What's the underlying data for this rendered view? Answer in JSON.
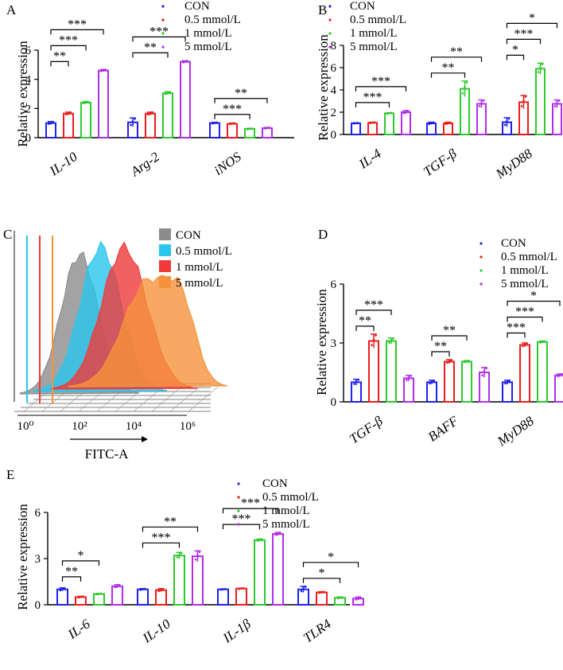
{
  "colors": {
    "CON": "#1f1ff0",
    "0.5 mmol/L": "#ee1c1c",
    "1 mmol/L": "#2ec92e",
    "5 mmol/L": "#b02ee8",
    "flow": [
      "#8c8c8c",
      "#29c6ee",
      "#ef3a3a",
      "#f5923b"
    ]
  },
  "chart_data": [
    {
      "panel": "A",
      "type": "bar",
      "ylabel": "Relative expression",
      "ylim": [
        0,
        6
      ],
      "yticks": [
        "0",
        "2",
        "4",
        "6"
      ],
      "categories": [
        "IL-10",
        "Arg-2",
        "iNOS"
      ],
      "legend": [
        "CON",
        "0.5 mmol/L",
        "1 mmol/L",
        "5 mmol/L"
      ],
      "series": [
        {
          "name": "CON",
          "values": [
            1.0,
            1.05,
            1.0
          ],
          "errors": [
            0.1,
            0.3,
            0.05
          ]
        },
        {
          "name": "0.5 mmol/L",
          "values": [
            1.65,
            1.65,
            0.95
          ],
          "errors": [
            0.1,
            0.1,
            0.05
          ]
        },
        {
          "name": "1 mmol/L",
          "values": [
            2.4,
            3.05,
            0.6
          ],
          "errors": [
            0.07,
            0.1,
            0.04
          ]
        },
        {
          "name": "5 mmol/L",
          "values": [
            4.6,
            5.2,
            0.65
          ],
          "errors": [
            0.07,
            0.07,
            0.05
          ]
        }
      ],
      "significance": [
        {
          "cat": 0,
          "from": 0,
          "to": 1,
          "label": "**"
        },
        {
          "cat": 0,
          "from": 0,
          "to": 2,
          "label": "***"
        },
        {
          "cat": 0,
          "from": 0,
          "to": 3,
          "label": "***"
        },
        {
          "cat": 1,
          "from": 0,
          "to": 2,
          "label": "**"
        },
        {
          "cat": 1,
          "from": 0,
          "to": 3,
          "label": "***"
        },
        {
          "cat": 2,
          "from": 0,
          "to": 2,
          "label": "***"
        },
        {
          "cat": 2,
          "from": 0,
          "to": 3,
          "label": "**"
        }
      ]
    },
    {
      "panel": "B",
      "type": "bar",
      "ylabel": "Relative expression",
      "ylim": [
        0,
        8
      ],
      "yticks": [
        "0",
        "2",
        "4",
        "6",
        "8"
      ],
      "categories": [
        "IL-4",
        "TGF-β",
        "MyD88"
      ],
      "legend": [
        "CON",
        "0.5 mmol/L",
        "1 mmol/L",
        "5 mmol/L"
      ],
      "series": [
        {
          "name": "CON",
          "values": [
            1.0,
            1.0,
            1.1
          ],
          "errors": [
            0.05,
            0.1,
            0.4
          ]
        },
        {
          "name": "0.5 mmol/L",
          "values": [
            1.05,
            1.0,
            2.9
          ],
          "errors": [
            0.05,
            0.1,
            0.6
          ]
        },
        {
          "name": "1 mmol/L",
          "values": [
            1.9,
            4.1,
            5.9
          ],
          "errors": [
            0.05,
            0.7,
            0.5
          ]
        },
        {
          "name": "5 mmol/L",
          "values": [
            2.0,
            2.75,
            2.75
          ],
          "errors": [
            0.15,
            0.35,
            0.35
          ]
        }
      ],
      "significance": [
        {
          "cat": 0,
          "from": 0,
          "to": 2,
          "label": "***"
        },
        {
          "cat": 0,
          "from": 0,
          "to": 3,
          "label": "***"
        },
        {
          "cat": 1,
          "from": 0,
          "to": 2,
          "label": "**"
        },
        {
          "cat": 1,
          "from": 0,
          "to": 3,
          "label": "**"
        },
        {
          "cat": 2,
          "from": 0,
          "to": 1,
          "label": "*"
        },
        {
          "cat": 2,
          "from": 0,
          "to": 2,
          "label": "***"
        },
        {
          "cat": 2,
          "from": 0,
          "to": 3,
          "label": "*"
        }
      ]
    },
    {
      "panel": "C",
      "type": "histogram",
      "xlabel": "FITC-A",
      "xticks": [
        "10⁰",
        "10²",
        "10⁴",
        "10⁶"
      ],
      "legend": [
        "CON",
        "0.5 mmol/L",
        "1 mmol/L",
        "5 mmol/L"
      ],
      "peaks_log10": [
        2.3,
        2.9,
        3.6,
        4.3
      ]
    },
    {
      "panel": "D",
      "type": "bar",
      "ylabel": "Relative expression",
      "ylim": [
        0,
        6
      ],
      "yticks": [
        "0",
        "3",
        "6"
      ],
      "categories": [
        "TGF-β",
        "BAFF",
        "MyD88"
      ],
      "legend": [
        "CON",
        "0.5 mmol/L",
        "1 mmol/L",
        "5 mmol/L"
      ],
      "series": [
        {
          "name": "CON",
          "values": [
            1.0,
            1.0,
            1.0
          ],
          "errors": [
            0.15,
            0.1,
            0.1
          ]
        },
        {
          "name": "0.5 mmol/L",
          "values": [
            3.1,
            2.05,
            2.9
          ],
          "errors": [
            0.35,
            0.1,
            0.1
          ]
        },
        {
          "name": "1 mmol/L",
          "values": [
            3.1,
            2.05,
            3.05
          ],
          "errors": [
            0.15,
            0.05,
            0.05
          ]
        },
        {
          "name": "5 mmol/L",
          "values": [
            1.2,
            1.5,
            1.35
          ],
          "errors": [
            0.15,
            0.25,
            0.07
          ]
        }
      ],
      "significance": [
        {
          "cat": 0,
          "from": 0,
          "to": 1,
          "label": "**"
        },
        {
          "cat": 0,
          "from": 0,
          "to": 2,
          "label": "***"
        },
        {
          "cat": 1,
          "from": 0,
          "to": 1,
          "label": "**"
        },
        {
          "cat": 1,
          "from": 0,
          "to": 2,
          "label": "**"
        },
        {
          "cat": 2,
          "from": 0,
          "to": 1,
          "label": "***"
        },
        {
          "cat": 2,
          "from": 0,
          "to": 2,
          "label": "***"
        },
        {
          "cat": 2,
          "from": 0,
          "to": 3,
          "label": "*"
        }
      ]
    },
    {
      "panel": "E",
      "type": "bar",
      "ylabel": "Relative expression",
      "ylim": [
        0,
        6
      ],
      "yticks": [
        "0",
        "3",
        "6"
      ],
      "categories": [
        "IL-6",
        "IL-10",
        "IL-1β",
        "TLR4"
      ],
      "legend": [
        "CON",
        "0.5 mmol/L",
        "1 mmol/L",
        "5 mmol/L"
      ],
      "series": [
        {
          "name": "CON",
          "values": [
            1.0,
            1.0,
            1.0,
            1.0
          ],
          "errors": [
            0.1,
            0.05,
            0.03,
            0.2
          ]
        },
        {
          "name": "0.5 mmol/L",
          "values": [
            0.5,
            0.95,
            1.05,
            0.8
          ],
          "errors": [
            0.05,
            0.1,
            0.03,
            0.05
          ]
        },
        {
          "name": "1 mmol/L",
          "values": [
            0.7,
            3.2,
            4.2,
            0.45
          ],
          "errors": [
            0.03,
            0.2,
            0.07,
            0.05
          ]
        },
        {
          "name": "5 mmol/L",
          "values": [
            1.2,
            3.15,
            4.6,
            0.4
          ],
          "errors": [
            0.1,
            0.35,
            0.1,
            0.1
          ]
        }
      ],
      "significance": [
        {
          "cat": 0,
          "from": 0,
          "to": 1,
          "label": "**"
        },
        {
          "cat": 0,
          "from": 0,
          "to": 2,
          "label": "*"
        },
        {
          "cat": 1,
          "from": 0,
          "to": 2,
          "label": "***"
        },
        {
          "cat": 1,
          "from": 0,
          "to": 3,
          "label": "**"
        },
        {
          "cat": 2,
          "from": 0,
          "to": 2,
          "label": "***"
        },
        {
          "cat": 2,
          "from": 0,
          "to": 3,
          "label": "***"
        },
        {
          "cat": 3,
          "from": 0,
          "to": 2,
          "label": "*"
        },
        {
          "cat": 3,
          "from": 0,
          "to": 3,
          "label": "*"
        }
      ]
    }
  ]
}
